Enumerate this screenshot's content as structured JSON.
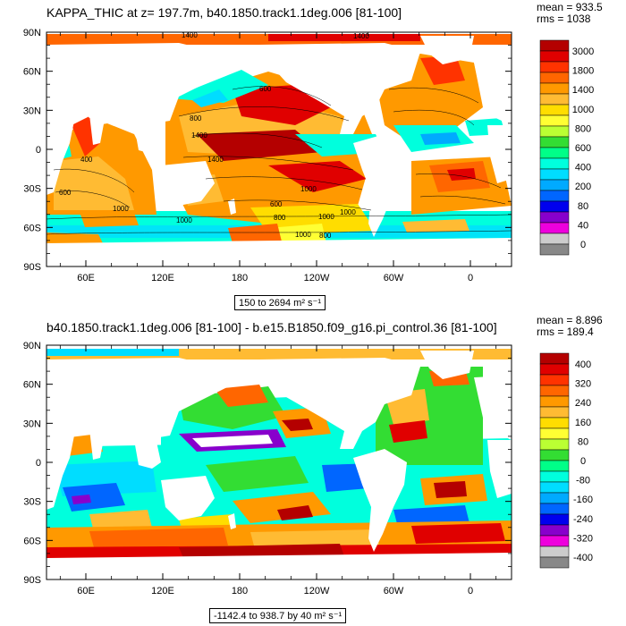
{
  "panels": [
    {
      "title": "KAPPA_THIC at z= 197.7m, b40.1850.track1.1deg.006 [81-100]",
      "stats": [
        "mean = 933.5",
        "rms = 1038"
      ],
      "range_label": "150 to 2694 m² s⁻¹",
      "colorbar": {
        "labels": [
          "3000",
          "1800",
          "1400",
          "1000",
          "800",
          "600",
          "400",
          "200",
          "80",
          "40",
          "0"
        ],
        "colors": [
          "#b40000",
          "#e00000",
          "#ff3300",
          "#ff6600",
          "#ff9900",
          "#ffbb33",
          "#ffdd00",
          "#ffff33",
          "#bbff33",
          "#33dd33",
          "#00ff88",
          "#00ffdd",
          "#00ddff",
          "#00aaff",
          "#0066ff",
          "#0000ee",
          "#8800cc",
          "#ee00dd",
          "#cccccc",
          "#888888"
        ]
      },
      "contour_labels": [
        "1400",
        "1400",
        "600",
        "800",
        "1400",
        "400",
        "1400",
        "600",
        "1000",
        "1000",
        "600",
        "1000",
        "1000",
        "800",
        "1000",
        "800",
        "1000"
      ]
    },
    {
      "title": "b40.1850.track1.1deg.006 [81-100] - b.e15.B1850.f09_g16.pi_control.36 [81-100]",
      "stats": [
        "mean = 8.896",
        "rms = 189.4"
      ],
      "range_label": "-1142.4 to 938.7 by 40 m² s⁻¹",
      "colorbar": {
        "labels": [
          "400",
          "320",
          "240",
          "160",
          "80",
          "0",
          "-80",
          "-160",
          "-240",
          "-320",
          "-400"
        ],
        "colors": [
          "#b40000",
          "#e00000",
          "#ff3300",
          "#ff6600",
          "#ff9900",
          "#ffbb33",
          "#ffdd00",
          "#ffff33",
          "#bbff33",
          "#33dd33",
          "#00ff88",
          "#00ffdd",
          "#00ddff",
          "#00aaff",
          "#0066ff",
          "#0000ee",
          "#8800cc",
          "#ee00dd",
          "#cccccc",
          "#888888"
        ]
      }
    }
  ],
  "axes": {
    "lat_ticks": [
      "90N",
      "60N",
      "30N",
      "0",
      "30S",
      "60S",
      "90S"
    ],
    "lon_ticks": [
      "60E",
      "120E",
      "180",
      "120W",
      "60W",
      "0"
    ]
  },
  "chart_data": [
    {
      "type": "heatmap",
      "title": "KAPPA_THIC at z= 197.7m, b40.1850.track1.1deg.006 [81-100]",
      "xlabel": "",
      "ylabel": "",
      "x_ticks": [
        "60E",
        "120E",
        "180",
        "120W",
        "60W",
        "0"
      ],
      "y_ticks": [
        "90N",
        "60N",
        "30N",
        "0",
        "30S",
        "60S",
        "90S"
      ],
      "colorbar_levels": [
        0,
        40,
        80,
        200,
        400,
        600,
        800,
        1000,
        1400,
        1800,
        3000
      ],
      "mean": 933.5,
      "rms": 1038,
      "min": 150,
      "max": 2694,
      "units": "m² s⁻¹"
    },
    {
      "type": "heatmap",
      "title": "b40.1850.track1.1deg.006 [81-100] - b.e15.B1850.f09_g16.pi_control.36 [81-100]",
      "xlabel": "",
      "ylabel": "",
      "x_ticks": [
        "60E",
        "120E",
        "180",
        "120W",
        "60W",
        "0"
      ],
      "y_ticks": [
        "90N",
        "60N",
        "30N",
        "0",
        "30S",
        "60S",
        "90S"
      ],
      "colorbar_levels": [
        -400,
        -320,
        -240,
        -160,
        -80,
        0,
        80,
        160,
        240,
        320,
        400
      ],
      "mean": 8.896,
      "rms": 189.4,
      "min": -1142.4,
      "max": 938.7,
      "interval": 40,
      "units": "m² s⁻¹"
    }
  ]
}
